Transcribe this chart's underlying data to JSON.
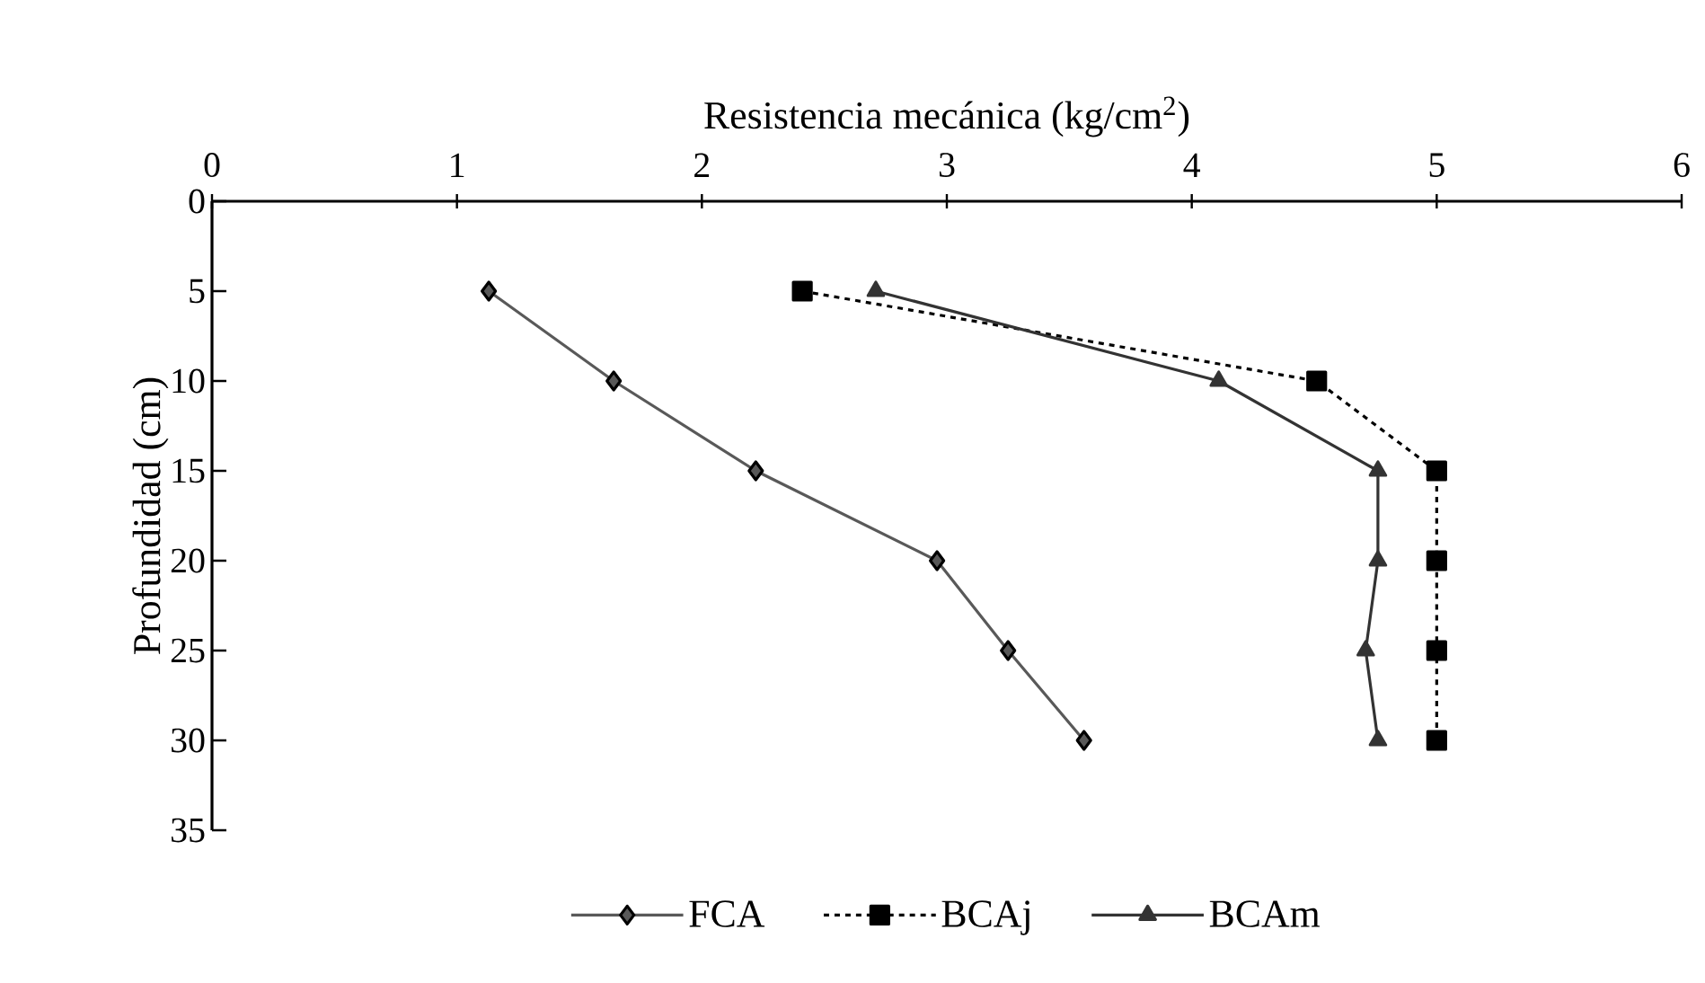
{
  "chart_data": {
    "type": "line",
    "xlabel": "Resistencia mecánica (kg/cm$^{2}$)",
    "ylabel": "Profundidad (cm)",
    "xlim": [
      0,
      6
    ],
    "xticks": [
      0,
      1,
      2,
      3,
      4,
      5,
      6
    ],
    "ylim": [
      35,
      0
    ],
    "yticks": [
      0,
      5,
      10,
      15,
      20,
      25,
      30,
      35
    ],
    "legend": "bottom",
    "grid": false,
    "series": [
      {
        "name": "FCA",
        "color": "#595959",
        "marker": "diamond",
        "line_style": "solid",
        "x": [
          1.13,
          1.64,
          2.22,
          2.96,
          3.25,
          3.56
        ],
        "values": [
          5,
          10,
          15,
          20,
          25,
          30
        ]
      },
      {
        "name": "BCAj",
        "color": "#000000",
        "marker": "square",
        "line_style": "dashed",
        "x": [
          2.41,
          4.51,
          5.0,
          5.0,
          5.0,
          5.0
        ],
        "values": [
          5,
          10,
          15,
          20,
          25,
          30
        ]
      },
      {
        "name": "BCAm",
        "color": "#333333",
        "marker": "triangle",
        "line_style": "solid",
        "x": [
          2.71,
          4.11,
          4.76,
          4.76,
          4.71,
          4.76
        ],
        "values": [
          5,
          10,
          15,
          20,
          25,
          30
        ]
      }
    ]
  }
}
